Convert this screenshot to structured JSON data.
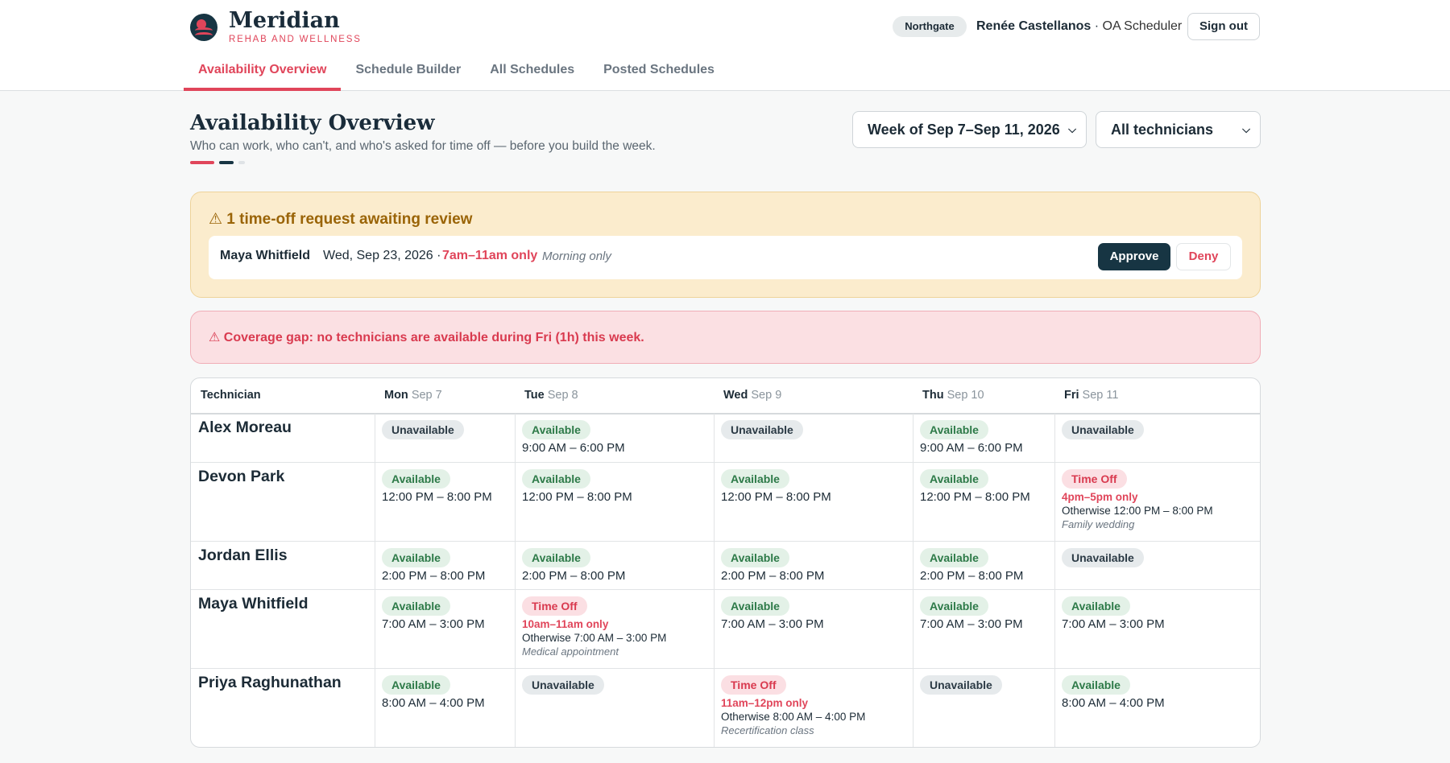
{
  "brand": {
    "name": "Meridian",
    "subtitle": "REHAB AND WELLNESS"
  },
  "header": {
    "location": "Northgate",
    "user_name": "Renée Castellanos",
    "user_sep": " · ",
    "user_role": "OA Scheduler",
    "signout_label": "Sign out"
  },
  "tabs": [
    {
      "label": "Availability Overview",
      "active": true
    },
    {
      "label": "Schedule Builder"
    },
    {
      "label": "All Schedules"
    },
    {
      "label": "Posted Schedules"
    }
  ],
  "page": {
    "title": "Availability Overview",
    "subtitle": "Who can work, who can't, and who's asked for time off — before you build the week."
  },
  "filters": {
    "week": "Week of Sep 7–Sep 11, 2026",
    "technician": "All technicians"
  },
  "colors": {
    "accent": "#e0455a",
    "navy": "#173543",
    "available": "#2d7a48"
  },
  "pending": {
    "header": "⚠ 1 time-off request awaiting review",
    "name": "Maya Whitfield",
    "date": "Wed, Sep 23, 2026 ·",
    "window": "7am–11am only",
    "note": "Morning only",
    "approve_label": "Approve",
    "deny_label": "Deny"
  },
  "coverage_gap": "⚠ Coverage gap: no technicians are available during Fri (1h) this week.",
  "table": {
    "tech_header": "Technician",
    "days": [
      {
        "day": "Mon",
        "date": "Sep 7"
      },
      {
        "day": "Tue",
        "date": "Sep 8"
      },
      {
        "day": "Wed",
        "date": "Sep 9"
      },
      {
        "day": "Thu",
        "date": "Sep 10"
      },
      {
        "day": "Fri",
        "date": "Sep 11"
      }
    ],
    "rows": [
      {
        "name": "Alex Moreau",
        "cells": [
          {
            "status": "Unavailable",
            "kind": "unav"
          },
          {
            "status": "Available",
            "kind": "avail",
            "hours": "9:00 AM – 6:00 PM"
          },
          {
            "status": "Unavailable",
            "kind": "unav"
          },
          {
            "status": "Available",
            "kind": "avail",
            "hours": "9:00 AM – 6:00 PM"
          },
          {
            "status": "Unavailable",
            "kind": "unav"
          }
        ]
      },
      {
        "name": "Devon Park",
        "cells": [
          {
            "status": "Available",
            "kind": "avail",
            "hours": "12:00 PM – 8:00 PM"
          },
          {
            "status": "Available",
            "kind": "avail",
            "hours": "12:00 PM – 8:00 PM"
          },
          {
            "status": "Available",
            "kind": "avail",
            "hours": "12:00 PM – 8:00 PM"
          },
          {
            "status": "Available",
            "kind": "avail",
            "hours": "12:00 PM – 8:00 PM"
          },
          {
            "status": "Time Off",
            "kind": "off",
            "only": "4pm–5pm only",
            "otherwise": "Otherwise 12:00 PM – 8:00 PM",
            "reason": "Family wedding"
          }
        ]
      },
      {
        "name": "Jordan Ellis",
        "cells": [
          {
            "status": "Available",
            "kind": "avail",
            "hours": "2:00 PM – 8:00 PM"
          },
          {
            "status": "Available",
            "kind": "avail",
            "hours": "2:00 PM – 8:00 PM"
          },
          {
            "status": "Available",
            "kind": "avail",
            "hours": "2:00 PM – 8:00 PM"
          },
          {
            "status": "Available",
            "kind": "avail",
            "hours": "2:00 PM – 8:00 PM"
          },
          {
            "status": "Unavailable",
            "kind": "unav"
          }
        ]
      },
      {
        "name": "Maya Whitfield",
        "cells": [
          {
            "status": "Available",
            "kind": "avail",
            "hours": "7:00 AM – 3:00 PM"
          },
          {
            "status": "Time Off",
            "kind": "off",
            "only": "10am–11am only",
            "otherwise": "Otherwise 7:00 AM – 3:00 PM",
            "reason": "Medical appointment"
          },
          {
            "status": "Available",
            "kind": "avail",
            "hours": "7:00 AM – 3:00 PM"
          },
          {
            "status": "Available",
            "kind": "avail",
            "hours": "7:00 AM – 3:00 PM"
          },
          {
            "status": "Available",
            "kind": "avail",
            "hours": "7:00 AM – 3:00 PM"
          }
        ]
      },
      {
        "name": "Priya Raghunathan",
        "cells": [
          {
            "status": "Available",
            "kind": "avail",
            "hours": "8:00 AM – 4:00 PM"
          },
          {
            "status": "Unavailable",
            "kind": "unav"
          },
          {
            "status": "Time Off",
            "kind": "off",
            "only": "11am–12pm only",
            "otherwise": "Otherwise 8:00 AM – 4:00 PM",
            "reason": "Recertification class"
          },
          {
            "status": "Unavailable",
            "kind": "unav"
          },
          {
            "status": "Available",
            "kind": "avail",
            "hours": "8:00 AM – 4:00 PM"
          }
        ]
      }
    ]
  }
}
